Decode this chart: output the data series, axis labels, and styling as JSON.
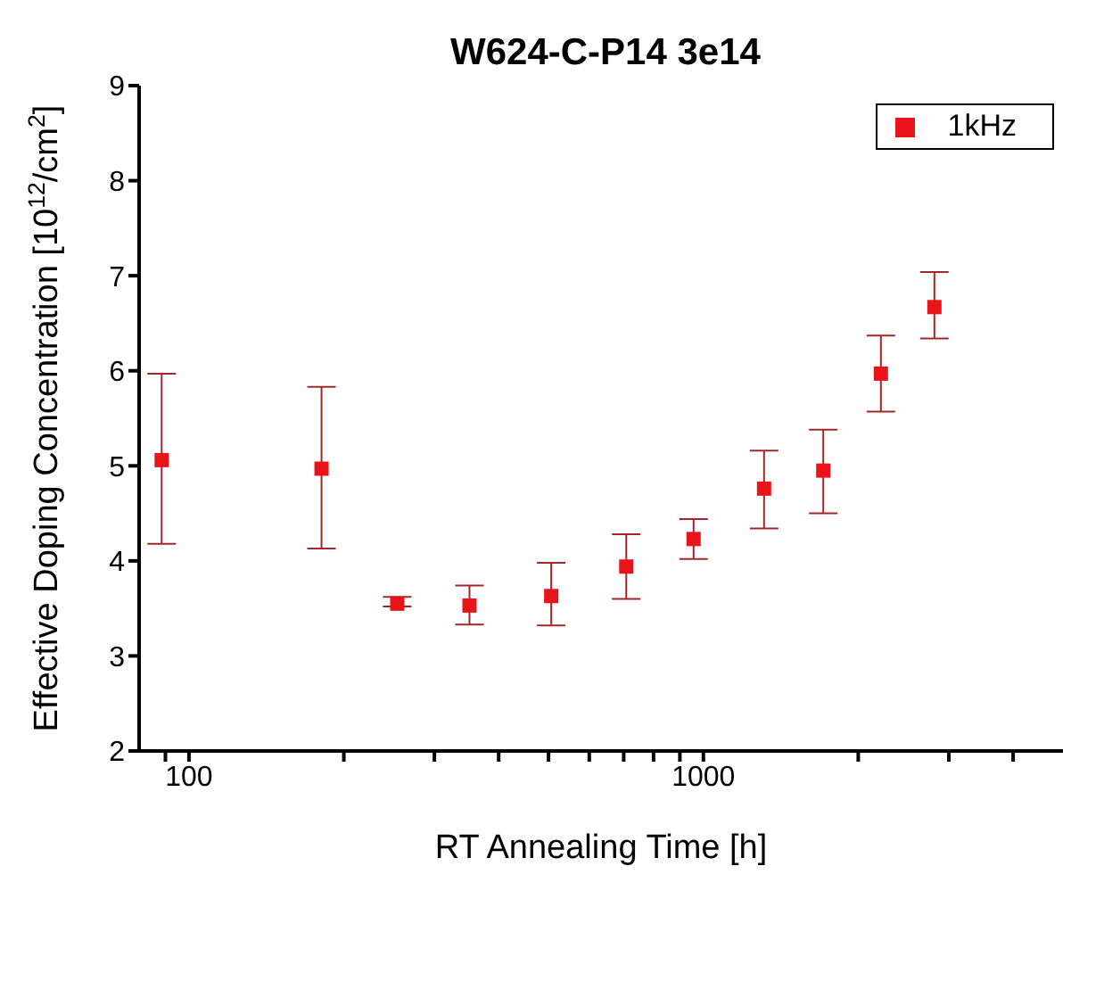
{
  "chart_data": {
    "type": "scatter",
    "title": "W624-C-P14 3e14",
    "xlabel": "RT Annealing Time [h]",
    "ylabel": "Effective Doping Concentration [10$^{12}$/cm$^{2}$]",
    "log": "x",
    "xlim": [
      80,
      5000
    ],
    "ylim": [
      2,
      9
    ],
    "xticks": [
      {
        "value": 90,
        "label": null
      },
      100,
      {
        "value": 200,
        "label": null
      },
      {
        "value": 300,
        "label": null
      },
      {
        "value": 400,
        "label": null
      },
      {
        "value": 500,
        "label": null
      },
      {
        "value": 600,
        "label": null
      },
      {
        "value": 700,
        "label": null
      },
      {
        "value": 800,
        "label": null
      },
      {
        "value": 900,
        "label": null
      },
      1000,
      {
        "value": 2000,
        "label": null
      },
      {
        "value": 3000,
        "label": null
      },
      {
        "value": 4000,
        "label": null
      }
    ],
    "yticks": [
      2,
      3,
      4,
      5,
      6,
      7,
      8,
      9
    ],
    "grid": false,
    "legend": "top right",
    "marker": "square",
    "x": [
      88.5,
      181,
      254,
      351,
      506,
      708,
      957,
      1312,
      1710,
      2213,
      2812
    ],
    "series": [
      {
        "name": "1kHz",
        "color": "#e8141a",
        "values": [
          5.06,
          4.97,
          3.55,
          3.53,
          3.63,
          3.94,
          4.23,
          4.76,
          4.95,
          5.97,
          6.67
        ],
        "errors": [
          [
            4.18,
            5.97
          ],
          [
            4.13,
            5.83
          ],
          [
            3.52,
            3.62
          ],
          [
            3.33,
            3.74
          ],
          [
            3.32,
            3.98
          ],
          [
            3.6,
            4.28
          ],
          [
            4.02,
            4.44
          ],
          [
            4.34,
            5.16
          ],
          [
            4.5,
            5.38
          ],
          [
            5.57,
            6.37
          ],
          [
            6.34,
            7.04
          ]
        ]
      }
    ]
  }
}
